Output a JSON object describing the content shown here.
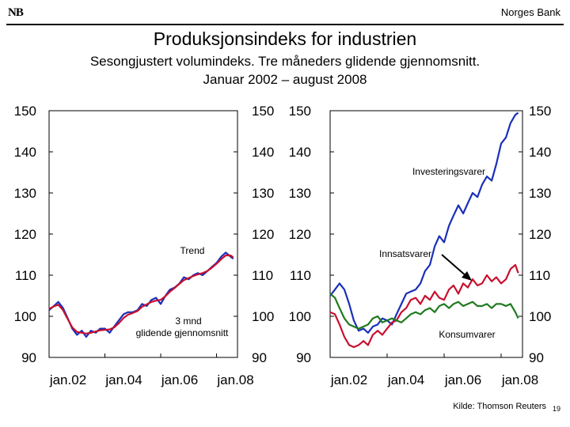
{
  "header": {
    "logo": "NB",
    "bank": "Norges Bank"
  },
  "title": "Produksjonsindeks for industrien",
  "subtitle_line1": "Sesongjustert volumindeks. Tre måneders glidende gjennomsnitt.",
  "subtitle_line2": "Januar 2002 – august 2008",
  "source": "Kilde: Thomson Reuters",
  "page_number": "19",
  "chart_data": [
    {
      "type": "line",
      "panel": "left",
      "ylim": [
        90,
        150
      ],
      "yticks": [
        "90",
        "100",
        "110",
        "120",
        "130",
        "140",
        "150"
      ],
      "xticks": [
        "jan.02",
        "jan.04",
        "jan.06",
        "jan.08"
      ],
      "xlim": [
        2002.0,
        2008.75
      ],
      "annotations": [
        "Trend",
        "3 mnd glidende gjennomsnitt"
      ],
      "series": [
        {
          "name": "3 mnd glidende gjennomsnitt",
          "color": "#1a2fb8",
          "x": [
            2002.0,
            2002.17,
            2002.33,
            2002.5,
            2002.67,
            2002.83,
            2003.0,
            2003.17,
            2003.33,
            2003.5,
            2003.67,
            2003.83,
            2004.0,
            2004.17,
            2004.33,
            2004.5,
            2004.67,
            2004.83,
            2005.0,
            2005.17,
            2005.33,
            2005.5,
            2005.67,
            2005.83,
            2006.0,
            2006.17,
            2006.33,
            2006.5,
            2006.67,
            2006.83,
            2007.0,
            2007.17,
            2007.33,
            2007.5,
            2007.67,
            2007.83,
            2008.0,
            2008.17,
            2008.33,
            2008.5,
            2008.6
          ],
          "values": [
            101.5,
            102.5,
            103.5,
            102.0,
            99.5,
            97.0,
            95.5,
            96.5,
            95.0,
            96.5,
            96.0,
            97.0,
            97.0,
            96.0,
            97.5,
            99.0,
            100.5,
            101.0,
            101.0,
            101.5,
            103.0,
            102.5,
            104.0,
            104.5,
            103.0,
            105.0,
            106.5,
            107.0,
            108.0,
            109.5,
            109.0,
            110.0,
            110.5,
            110.0,
            111.0,
            112.0,
            113.0,
            114.5,
            115.5,
            114.5,
            114.0
          ]
        },
        {
          "name": "Trend",
          "color": "#c8102e",
          "x": [
            2002.0,
            2002.17,
            2002.33,
            2002.5,
            2002.67,
            2002.83,
            2003.0,
            2003.17,
            2003.33,
            2003.5,
            2003.67,
            2003.83,
            2004.0,
            2004.17,
            2004.33,
            2004.5,
            2004.67,
            2004.83,
            2005.0,
            2005.17,
            2005.33,
            2005.5,
            2005.67,
            2005.83,
            2006.0,
            2006.17,
            2006.33,
            2006.5,
            2006.67,
            2006.83,
            2007.0,
            2007.17,
            2007.33,
            2007.5,
            2007.67,
            2007.83,
            2008.0,
            2008.17,
            2008.33,
            2008.5,
            2008.6
          ],
          "values": [
            101.8,
            102.4,
            102.8,
            101.5,
            99.3,
            97.3,
            96.2,
            96.0,
            95.8,
            96.0,
            96.3,
            96.6,
            96.7,
            96.8,
            97.3,
            98.3,
            99.6,
            100.4,
            100.8,
            101.3,
            102.3,
            102.9,
            103.5,
            103.8,
            104.0,
            104.9,
            106.0,
            106.9,
            107.9,
            108.8,
            109.3,
            109.8,
            110.2,
            110.5,
            111.0,
            111.8,
            112.8,
            113.9,
            114.8,
            114.8,
            114.3
          ]
        }
      ]
    },
    {
      "type": "line",
      "panel": "right",
      "ylim": [
        90,
        150
      ],
      "yticks": [
        "90",
        "100",
        "110",
        "120",
        "130",
        "140",
        "150"
      ],
      "xticks": [
        "jan.02",
        "jan.04",
        "jan.06",
        "jan.08"
      ],
      "xlim": [
        2002.0,
        2008.75
      ],
      "annotations": [
        "Investeringsvarer",
        "Innsatsvarer",
        "Konsumvarer"
      ],
      "series": [
        {
          "name": "Investeringsvarer",
          "color": "#1a2fb8",
          "x": [
            2002.0,
            2002.17,
            2002.33,
            2002.5,
            2002.67,
            2002.83,
            2003.0,
            2003.17,
            2003.33,
            2003.5,
            2003.67,
            2003.83,
            2004.0,
            2004.17,
            2004.33,
            2004.5,
            2004.67,
            2004.83,
            2005.0,
            2005.17,
            2005.33,
            2005.5,
            2005.67,
            2005.83,
            2006.0,
            2006.17,
            2006.33,
            2006.5,
            2006.67,
            2006.83,
            2007.0,
            2007.17,
            2007.33,
            2007.5,
            2007.67,
            2007.83,
            2008.0,
            2008.17,
            2008.33,
            2008.5,
            2008.6
          ],
          "values": [
            105.0,
            106.5,
            108.0,
            106.5,
            103.0,
            99.0,
            96.5,
            97.0,
            96.0,
            97.5,
            98.0,
            99.5,
            99.0,
            98.0,
            100.5,
            103.0,
            105.5,
            106.0,
            106.5,
            108.0,
            111.0,
            112.5,
            117.0,
            119.5,
            118.0,
            122.0,
            124.5,
            127.0,
            125.0,
            127.5,
            130.0,
            129.0,
            132.0,
            134.0,
            133.0,
            137.0,
            142.0,
            143.5,
            147.0,
            149.0,
            149.5
          ]
        },
        {
          "name": "Innsatsvarer",
          "color": "#c8102e",
          "x": [
            2002.0,
            2002.17,
            2002.33,
            2002.5,
            2002.67,
            2002.83,
            2003.0,
            2003.17,
            2003.33,
            2003.5,
            2003.67,
            2003.83,
            2004.0,
            2004.17,
            2004.33,
            2004.5,
            2004.67,
            2004.83,
            2005.0,
            2005.17,
            2005.33,
            2005.5,
            2005.67,
            2005.83,
            2006.0,
            2006.17,
            2006.33,
            2006.5,
            2006.67,
            2006.83,
            2007.0,
            2007.17,
            2007.33,
            2007.5,
            2007.67,
            2007.83,
            2008.0,
            2008.17,
            2008.33,
            2008.5,
            2008.6
          ],
          "values": [
            101.0,
            100.5,
            98.0,
            95.0,
            93.0,
            92.5,
            93.0,
            94.0,
            93.0,
            95.5,
            96.5,
            95.5,
            97.0,
            98.5,
            99.0,
            101.0,
            102.0,
            104.0,
            104.5,
            103.0,
            105.0,
            104.0,
            106.0,
            104.5,
            104.0,
            106.5,
            107.5,
            105.5,
            108.0,
            107.0,
            109.0,
            107.5,
            108.0,
            110.0,
            108.5,
            109.5,
            108.0,
            109.0,
            111.5,
            112.5,
            110.5
          ]
        },
        {
          "name": "Konsumvarer",
          "color": "#1f7a1f",
          "x": [
            2002.0,
            2002.17,
            2002.33,
            2002.5,
            2002.67,
            2002.83,
            2003.0,
            2003.17,
            2003.33,
            2003.5,
            2003.67,
            2003.83,
            2004.0,
            2004.17,
            2004.33,
            2004.5,
            2004.67,
            2004.83,
            2005.0,
            2005.17,
            2005.33,
            2005.5,
            2005.67,
            2005.83,
            2006.0,
            2006.17,
            2006.33,
            2006.5,
            2006.67,
            2006.83,
            2007.0,
            2007.17,
            2007.33,
            2007.5,
            2007.67,
            2007.83,
            2008.0,
            2008.17,
            2008.33,
            2008.5,
            2008.6
          ],
          "values": [
            105.5,
            104.5,
            102.0,
            99.5,
            98.0,
            97.5,
            97.0,
            97.5,
            98.0,
            99.5,
            100.0,
            98.5,
            99.0,
            99.5,
            99.0,
            98.5,
            99.5,
            100.5,
            101.0,
            100.5,
            101.5,
            102.0,
            101.0,
            102.5,
            103.0,
            102.0,
            103.0,
            103.5,
            102.5,
            103.0,
            103.5,
            102.5,
            102.5,
            103.0,
            102.0,
            103.0,
            103.0,
            102.5,
            103.0,
            101.0,
            99.5
          ]
        }
      ]
    }
  ]
}
